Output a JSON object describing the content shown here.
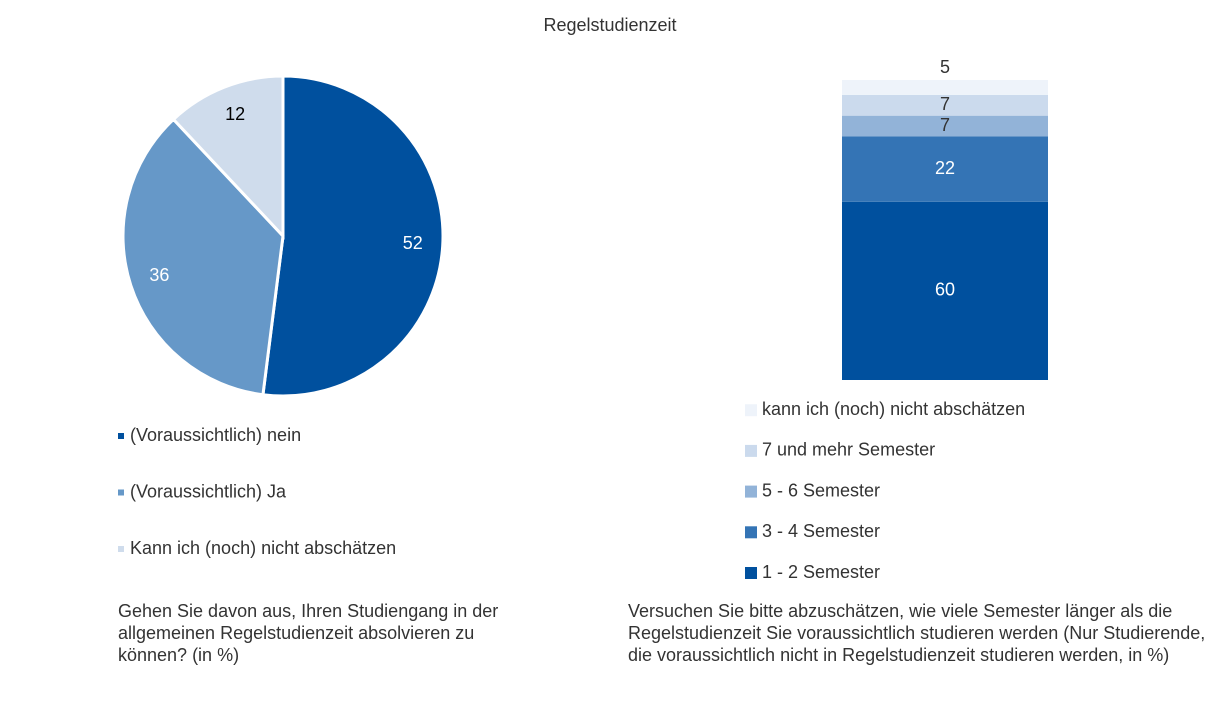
{
  "title": "Regelstudienzeit",
  "chart_data": [
    {
      "type": "pie",
      "caption": "Gehen Sie davon aus, Ihren Studiengang in der allgemeinen Regelstudienzeit absolvieren zu können? (in %)",
      "categories": [
        "(Voraussichtlich) nein",
        "(Voraussichtlich) Ja",
        "Kann ich (noch) nicht abschätzen"
      ],
      "values": [
        52,
        36,
        12
      ],
      "colors": [
        "#00509e",
        "#6698c8",
        "#cfdcec"
      ]
    },
    {
      "type": "stacked_bar",
      "caption": "Versuchen Sie bitte abzuschätzen, wie viele Semester länger als die Regelstudienzeit Sie voraussichtlich studieren werden (Nur Studierende, die voraussichtlich nicht in Regelstudienzeit studieren werden, in %)",
      "series": [
        {
          "name": "1 - 2 Semester",
          "color": "#00509e",
          "values": [
            60
          ]
        },
        {
          "name": "3 - 4 Semester",
          "color": "#3474b5",
          "values": [
            22
          ]
        },
        {
          "name": "5 - 6 Semester",
          "color": "#92b3d8",
          "values": [
            7
          ]
        },
        {
          "name": "7 und mehr Semester",
          "color": "#cbdaed",
          "values": [
            7
          ]
        },
        {
          "name": "kann ich (noch) nicht abschätzen",
          "color": "#eef3fa",
          "values": [
            5
          ]
        }
      ]
    }
  ]
}
